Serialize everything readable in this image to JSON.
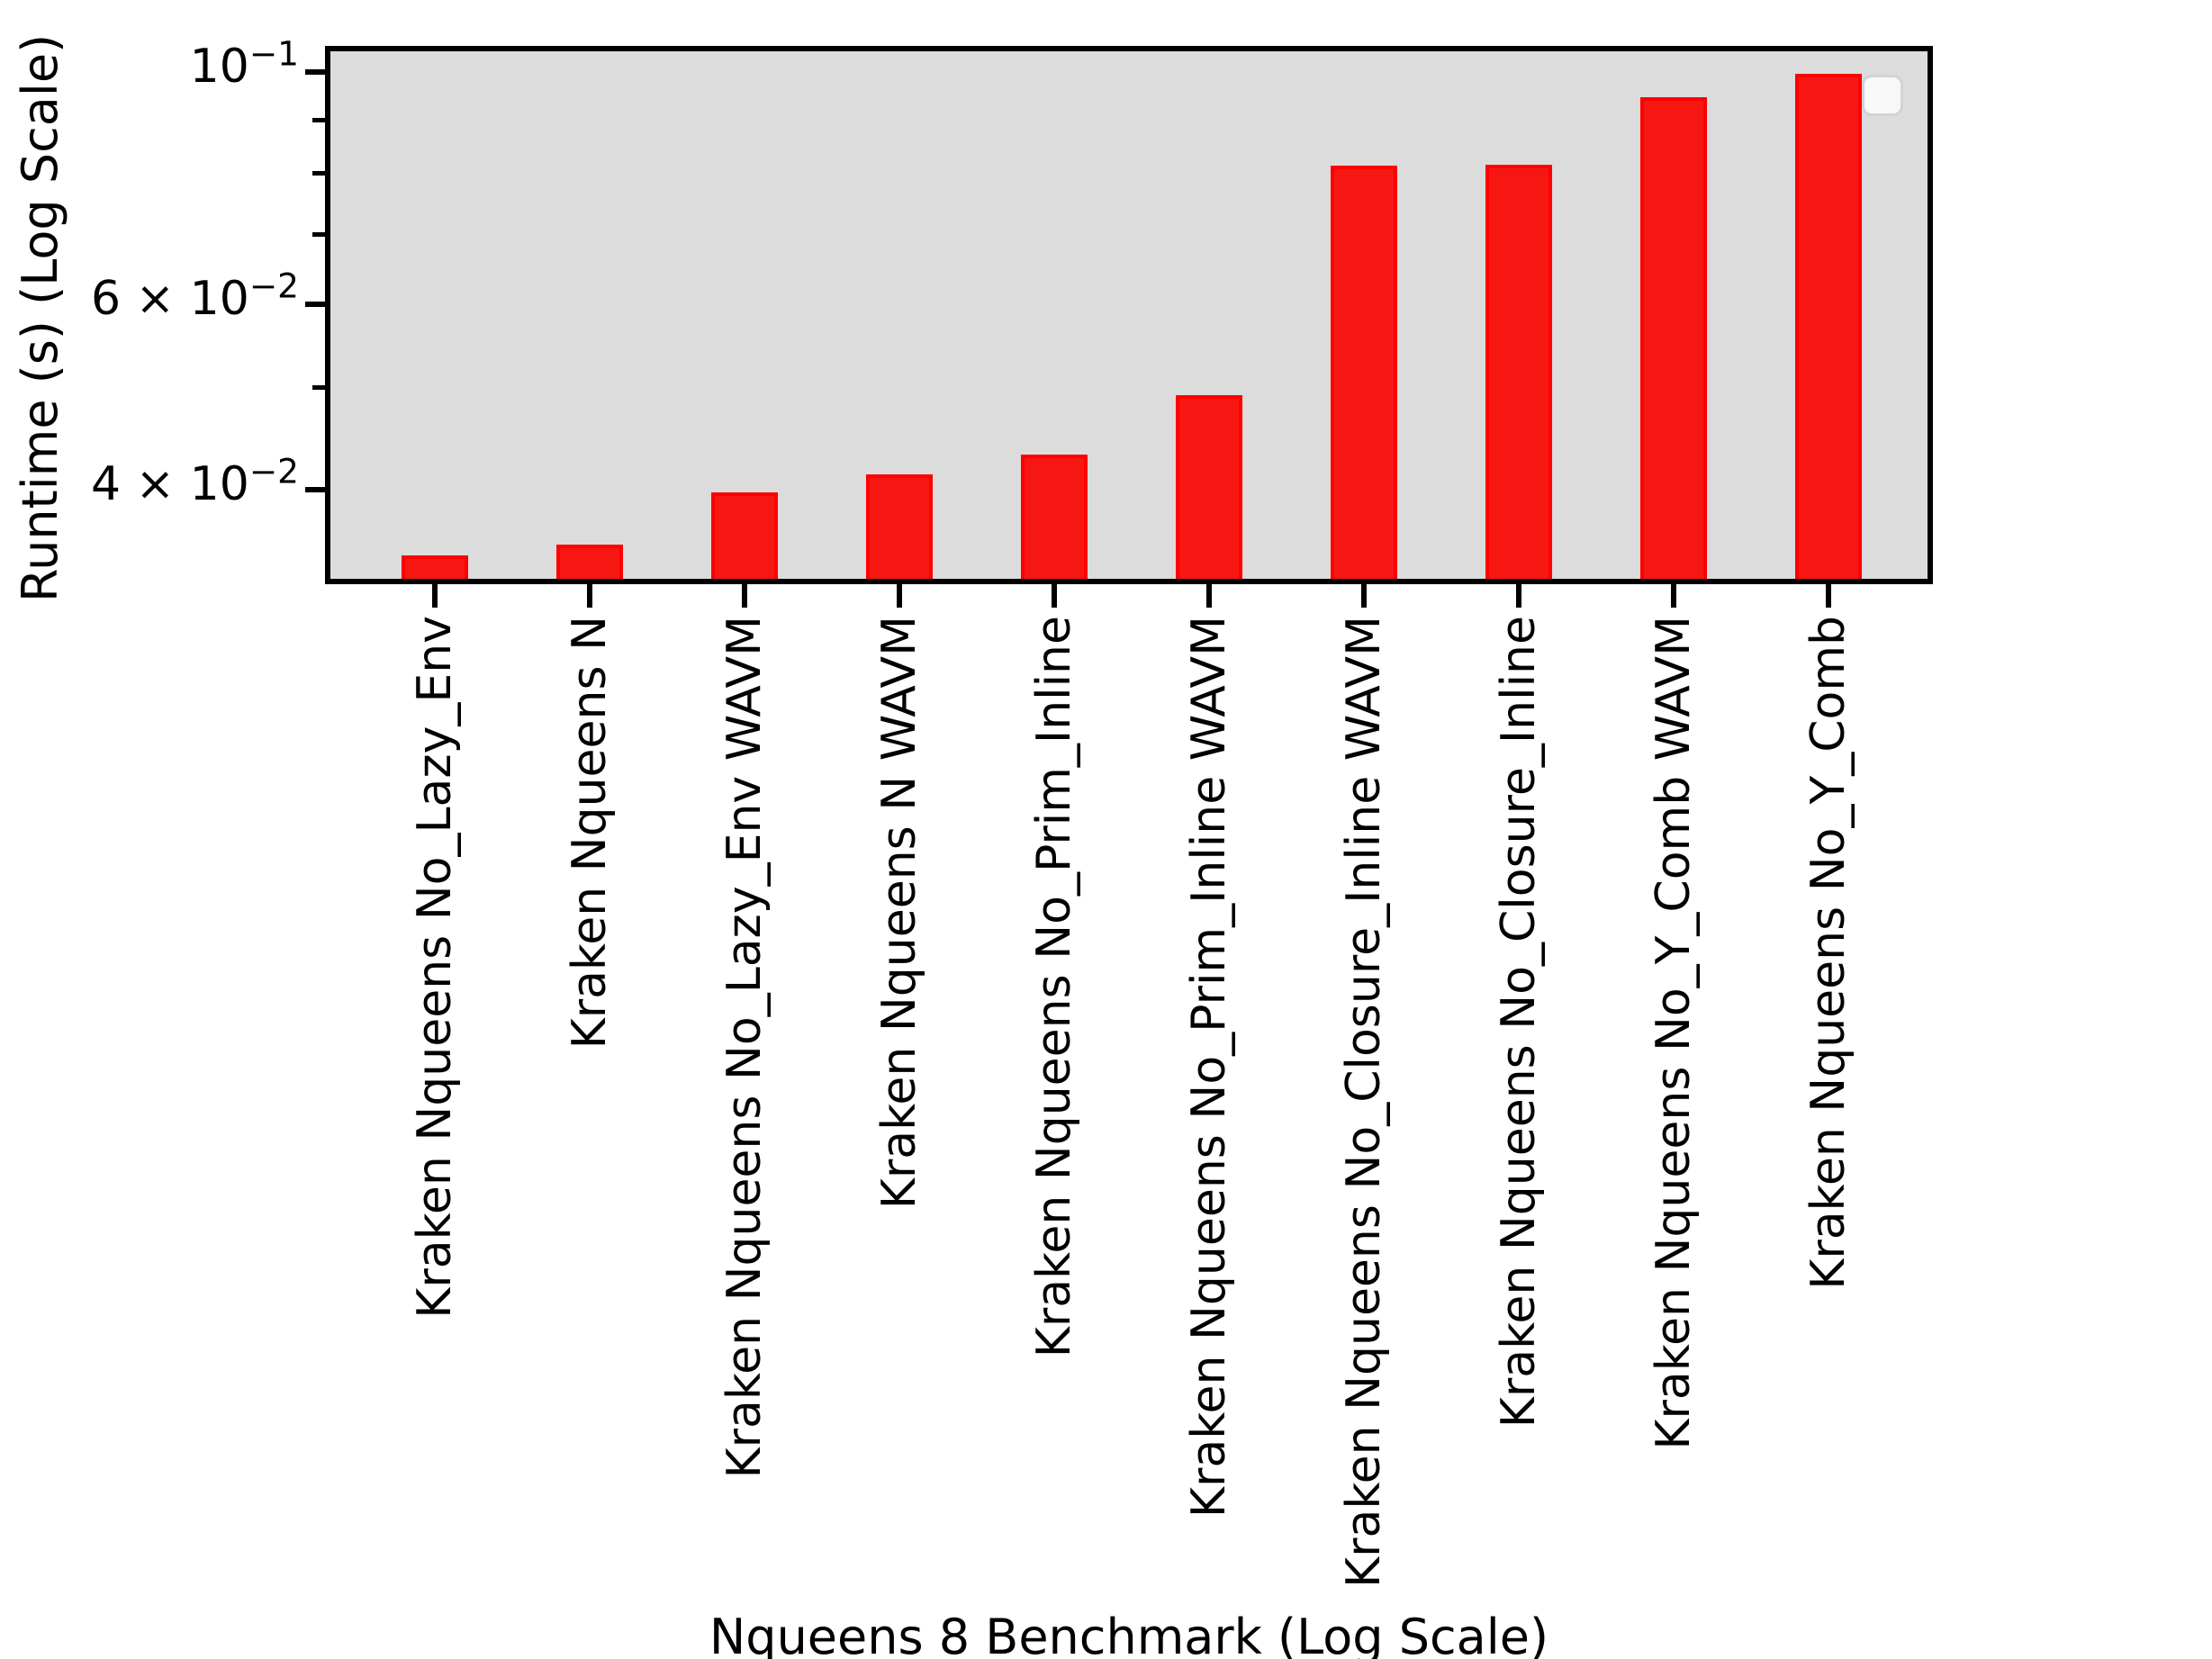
{
  "chart_data": {
    "type": "bar",
    "title": "",
    "xlabel": "Nqueens 8 Benchmark (Log Scale)",
    "ylabel": "Runtime (s) (Log Scale)",
    "yscale": "log",
    "ylim": [
      0.0327,
      0.1046
    ],
    "grid": false,
    "categories": [
      "Kraken Nqueens No_Lazy_Env",
      "Kraken Nqueens N",
      "Kraken Nqueens No_Lazy_Env WAVM",
      "Kraken Nqueens N WAVM",
      "Kraken Nqueens No_Prim_Inline",
      "Kraken Nqueens No_Prim_Inline WAVM",
      "Kraken Nqueens No_Closure_Inline WAVM",
      "Kraken Nqueens No_Closure_Inline",
      "Kraken Nqueens No_Y_Comb WAVM",
      "Kraken Nqueens No_Y_Comb"
    ],
    "values": [
      0.0346,
      0.0354,
      0.0397,
      0.0413,
      0.0432,
      0.0492,
      0.0814,
      0.0816,
      0.0946,
      0.0996
    ],
    "unit": "s",
    "bar_color": "#f61713",
    "bar_edge_color": "#ff0000",
    "plot_bg_color": "#dcdcdc",
    "yticks_major": [
      {
        "mantissa": "10",
        "exp": "−1",
        "value": 0.1
      },
      {
        "mantissa": "6 × 10",
        "exp": "−2",
        "value": 0.06
      },
      {
        "mantissa": "4 × 10",
        "exp": "−2",
        "value": 0.04
      }
    ],
    "yticks_minor": [
      0.09,
      0.08,
      0.07,
      0.05
    ],
    "legend": {
      "visible": true,
      "entries": []
    }
  }
}
